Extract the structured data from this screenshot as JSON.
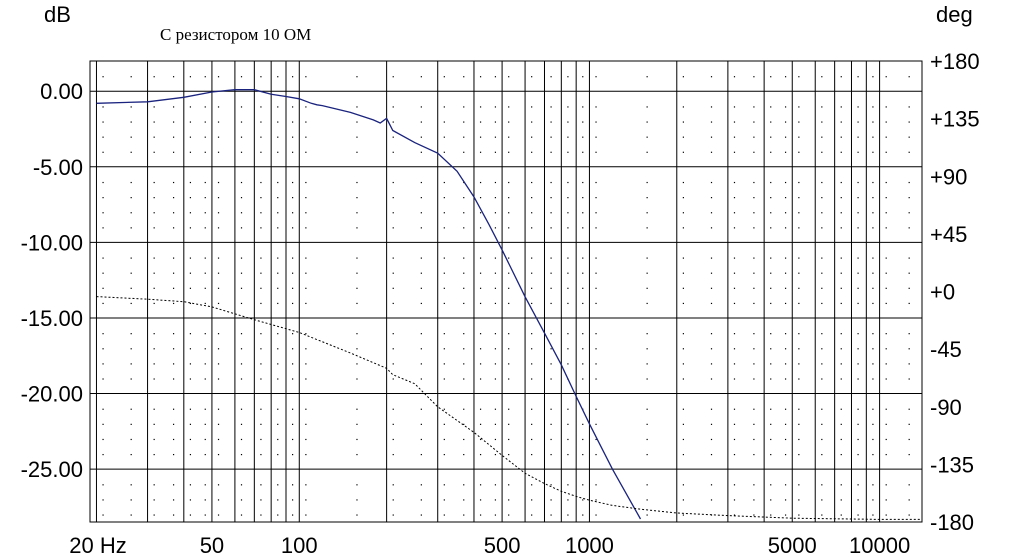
{
  "chart_data": {
    "type": "line",
    "title": "С резистором 10 ОМ",
    "y_unit_left": "dB",
    "y_unit_right": "deg",
    "x_scale": "log",
    "xlim": [
      19,
      14000
    ],
    "ylim_left": [
      -28.5,
      2
    ],
    "ylim_right": [
      -180,
      180
    ],
    "grid": true,
    "x_tick_labels": [
      {
        "value": 20,
        "label": "20 Hz"
      },
      {
        "value": 50,
        "label": "50"
      },
      {
        "value": 100,
        "label": "100"
      },
      {
        "value": 500,
        "label": "500"
      },
      {
        "value": 1000,
        "label": "1000"
      },
      {
        "value": 5000,
        "label": "5000"
      },
      {
        "value": 10000,
        "label": "10000"
      }
    ],
    "y_left_tick_labels": [
      {
        "value": 0,
        "label": "0.00"
      },
      {
        "value": -5,
        "label": "-5.00"
      },
      {
        "value": -10,
        "label": "-10.00"
      },
      {
        "value": -15,
        "label": "-15.00"
      },
      {
        "value": -20,
        "label": "-20.00"
      },
      {
        "value": -25,
        "label": "-25.00"
      }
    ],
    "y_right_tick_labels": [
      {
        "value": 180,
        "label": "+180"
      },
      {
        "value": 135,
        "label": "+135"
      },
      {
        "value": 90,
        "label": "+90"
      },
      {
        "value": 45,
        "label": "+45"
      },
      {
        "value": 0,
        "label": "+0"
      },
      {
        "value": -45,
        "label": "-45"
      },
      {
        "value": -90,
        "label": "-90"
      },
      {
        "value": -135,
        "label": "-135"
      },
      {
        "value": -180,
        "label": "-180"
      }
    ],
    "series": [
      {
        "axis": "left",
        "color": "#1a237e",
        "style": "solid",
        "x": [
          20,
          30,
          40,
          50,
          60,
          70,
          80,
          90,
          100,
          110,
          115,
          120,
          150,
          180,
          190,
          200,
          210,
          250,
          300,
          350,
          400,
          450,
          500,
          600,
          700,
          800,
          900,
          1000,
          1200,
          1500
        ],
        "y": [
          -0.8,
          -0.7,
          -0.4,
          -0.05,
          0.1,
          0.1,
          -0.2,
          -0.35,
          -0.5,
          -0.8,
          -0.9,
          -0.95,
          -1.4,
          -1.9,
          -2.1,
          -1.8,
          -2.6,
          -3.4,
          -4.1,
          -5.3,
          -7.0,
          -8.8,
          -10.5,
          -13.6,
          -16.0,
          -18.1,
          -20.2,
          -22.0,
          -25.0,
          -28.3
        ]
      },
      {
        "axis": "right",
        "color": "#000000",
        "style": "dotted",
        "x": [
          20,
          30,
          40,
          50,
          70,
          100,
          150,
          200,
          210,
          250,
          300,
          400,
          500,
          600,
          700,
          800,
          900,
          1000,
          1200,
          1500,
          2000,
          3000,
          5000,
          10000,
          14000
        ],
        "y": [
          -4,
          -6,
          -8,
          -12,
          -22,
          -32,
          -48,
          -60,
          -65,
          -72,
          -90,
          -110,
          -128,
          -142,
          -150,
          -156,
          -160,
          -163,
          -167,
          -170,
          -173,
          -175,
          -177,
          -178,
          -178
        ]
      }
    ]
  }
}
